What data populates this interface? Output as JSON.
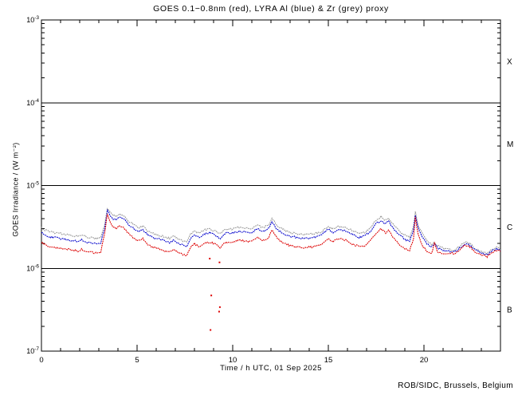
{
  "header": {
    "title": "GOES 0.1−0.8nm (red), LYRA Al (blue) & Zr (grey) proxy"
  },
  "footer": {
    "credit": "ROB/SIDC, Brussels, Belgium"
  },
  "colors": {
    "red": "#dd0000",
    "blue": "#0000cc",
    "grey": "#999999",
    "axis": "#000000",
    "background": "#ffffff"
  },
  "chart_data": {
    "type": "line",
    "title": "GOES 0.1−0.8nm (red), LYRA Al (blue) & Zr (grey) proxy",
    "xlabel": "Time / h UTC, 01 Sep 2025",
    "ylabel": "GOES Irradiance / (W m⁻²)",
    "x_range": [
      0,
      24
    ],
    "x_major_ticks": [
      0,
      5,
      10,
      15,
      20
    ],
    "x_minor_step": 1,
    "y_scale": "log",
    "y_major_exponents": [
      -3,
      -4,
      -5,
      -6,
      -7
    ],
    "y_top_exponent": -3,
    "y_bottom_exponent": -7,
    "grid": "off",
    "legend": "in-title",
    "unit_scale": 1e-06,
    "flare_class_lines": [
      0.0001,
      1e-05,
      1e-06
    ],
    "flare_class_labels": [
      {
        "label": "X",
        "flux": 0.000316
      },
      {
        "label": "M",
        "flux": 3.16e-05
      },
      {
        "label": "C",
        "flux": 3.16e-06
      },
      {
        "label": "B",
        "flux": 3.16e-07
      }
    ],
    "series": [
      {
        "name": "Zr (grey) proxy",
        "color_name": "grey",
        "color": "#999999",
        "points": [
          [
            0,
            3.08
          ],
          [
            0.3,
            2.82
          ],
          [
            0.7,
            2.7
          ],
          [
            1.0,
            2.64
          ],
          [
            1.3,
            2.58
          ],
          [
            1.6,
            2.49
          ],
          [
            1.9,
            2.43
          ],
          [
            2.1,
            2.55
          ],
          [
            2.35,
            2.4
          ],
          [
            2.6,
            2.34
          ],
          [
            2.9,
            2.28
          ],
          [
            3.1,
            2.37
          ],
          [
            3.3,
            3.3
          ],
          [
            3.45,
            5.35
          ],
          [
            3.6,
            4.7
          ],
          [
            3.75,
            4.35
          ],
          [
            3.9,
            4.3
          ],
          [
            4.1,
            4.55
          ],
          [
            4.3,
            4.35
          ],
          [
            4.55,
            3.75
          ],
          [
            4.8,
            3.4
          ],
          [
            5.05,
            3.1
          ],
          [
            5.3,
            3.25
          ],
          [
            5.55,
            2.85
          ],
          [
            5.85,
            2.65
          ],
          [
            6.15,
            2.5
          ],
          [
            6.45,
            2.4
          ],
          [
            6.7,
            2.3
          ],
          [
            6.95,
            2.45
          ],
          [
            7.15,
            2.25
          ],
          [
            7.4,
            2.15
          ],
          [
            7.6,
            2.1
          ],
          [
            7.8,
            2.6
          ],
          [
            8.0,
            2.85
          ],
          [
            8.25,
            2.65
          ],
          [
            8.5,
            2.9
          ],
          [
            8.8,
            3.0
          ],
          [
            9.1,
            2.8
          ],
          [
            9.35,
            2.6
          ],
          [
            9.6,
            2.95
          ],
          [
            10.0,
            3.0
          ],
          [
            10.4,
            3.15
          ],
          [
            10.7,
            3.05
          ],
          [
            11.0,
            3.05
          ],
          [
            11.3,
            3.3
          ],
          [
            11.6,
            3.1
          ],
          [
            11.9,
            3.4
          ],
          [
            12.05,
            4.0
          ],
          [
            12.3,
            3.35
          ],
          [
            12.6,
            2.95
          ],
          [
            13.0,
            2.7
          ],
          [
            13.4,
            2.6
          ],
          [
            13.8,
            2.58
          ],
          [
            14.2,
            2.62
          ],
          [
            14.6,
            2.75
          ],
          [
            15.0,
            3.2
          ],
          [
            15.25,
            3.0
          ],
          [
            15.55,
            3.2
          ],
          [
            15.9,
            3.1
          ],
          [
            16.3,
            2.85
          ],
          [
            16.6,
            2.65
          ],
          [
            16.9,
            2.7
          ],
          [
            17.2,
            3.1
          ],
          [
            17.5,
            3.8
          ],
          [
            17.75,
            4.2
          ],
          [
            18.0,
            3.8
          ],
          [
            18.15,
            4.05
          ],
          [
            18.4,
            3.35
          ],
          [
            18.7,
            2.85
          ],
          [
            19.0,
            2.5
          ],
          [
            19.25,
            2.35
          ],
          [
            19.45,
            3.2
          ],
          [
            19.55,
            4.8
          ],
          [
            19.7,
            3.3
          ],
          [
            19.9,
            2.65
          ],
          [
            20.15,
            2.19
          ],
          [
            20.4,
            1.95
          ],
          [
            20.55,
            2.05
          ],
          [
            20.7,
            1.9
          ],
          [
            21.0,
            1.73
          ],
          [
            21.3,
            1.69
          ],
          [
            21.6,
            1.65
          ],
          [
            21.9,
            1.87
          ],
          [
            22.15,
            2.06
          ],
          [
            22.4,
            1.99
          ],
          [
            22.7,
            1.72
          ],
          [
            23.0,
            1.6
          ],
          [
            23.3,
            1.52
          ],
          [
            23.6,
            1.71
          ],
          [
            23.8,
            1.79
          ],
          [
            24.0,
            1.68
          ]
        ]
      },
      {
        "name": "LYRA Al (blue) proxy",
        "color_name": "blue",
        "color": "#0000cc",
        "points": [
          [
            0,
            2.67
          ],
          [
            0.3,
            2.44
          ],
          [
            0.7,
            2.34
          ],
          [
            1.0,
            2.29
          ],
          [
            1.3,
            2.24
          ],
          [
            1.6,
            2.16
          ],
          [
            1.9,
            2.11
          ],
          [
            2.1,
            2.21
          ],
          [
            2.35,
            2.08
          ],
          [
            2.6,
            2.03
          ],
          [
            2.9,
            1.98
          ],
          [
            3.1,
            2.05
          ],
          [
            3.3,
            3.0
          ],
          [
            3.45,
            5.0
          ],
          [
            3.6,
            4.3
          ],
          [
            3.75,
            3.95
          ],
          [
            3.9,
            3.9
          ],
          [
            4.1,
            4.15
          ],
          [
            4.3,
            3.95
          ],
          [
            4.55,
            3.4
          ],
          [
            4.8,
            3.05
          ],
          [
            5.05,
            2.8
          ],
          [
            5.3,
            2.95
          ],
          [
            5.55,
            2.55
          ],
          [
            5.85,
            2.35
          ],
          [
            6.15,
            2.25
          ],
          [
            6.45,
            2.15
          ],
          [
            6.7,
            2.05
          ],
          [
            6.95,
            2.2
          ],
          [
            7.15,
            2.0
          ],
          [
            7.4,
            1.9
          ],
          [
            7.6,
            1.86
          ],
          [
            7.8,
            2.3
          ],
          [
            8.0,
            2.55
          ],
          [
            8.25,
            2.35
          ],
          [
            8.5,
            2.6
          ],
          [
            8.8,
            2.7
          ],
          [
            9.1,
            2.5
          ],
          [
            9.35,
            2.3
          ],
          [
            9.6,
            2.65
          ],
          [
            10.0,
            2.7
          ],
          [
            10.4,
            2.8
          ],
          [
            10.7,
            2.72
          ],
          [
            11.0,
            2.75
          ],
          [
            11.3,
            3.0
          ],
          [
            11.6,
            2.8
          ],
          [
            11.9,
            3.1
          ],
          [
            12.05,
            3.7
          ],
          [
            12.3,
            3.0
          ],
          [
            12.6,
            2.65
          ],
          [
            13.0,
            2.45
          ],
          [
            13.4,
            2.35
          ],
          [
            13.8,
            2.3
          ],
          [
            14.2,
            2.36
          ],
          [
            14.6,
            2.5
          ],
          [
            15.0,
            2.95
          ],
          [
            15.25,
            2.7
          ],
          [
            15.55,
            2.95
          ],
          [
            15.9,
            2.85
          ],
          [
            16.3,
            2.55
          ],
          [
            16.6,
            2.35
          ],
          [
            16.9,
            2.45
          ],
          [
            17.2,
            2.8
          ],
          [
            17.5,
            3.45
          ],
          [
            17.75,
            3.8
          ],
          [
            18.0,
            3.45
          ],
          [
            18.15,
            3.7
          ],
          [
            18.4,
            3.0
          ],
          [
            18.7,
            2.55
          ],
          [
            19.0,
            2.25
          ],
          [
            19.25,
            2.1
          ],
          [
            19.45,
            2.9
          ],
          [
            19.55,
            4.5
          ],
          [
            19.7,
            3.0
          ],
          [
            19.9,
            2.4
          ],
          [
            20.15,
            1.98
          ],
          [
            20.4,
            1.79
          ],
          [
            20.55,
            2.0
          ],
          [
            20.7,
            1.77
          ],
          [
            21.0,
            1.64
          ],
          [
            21.3,
            1.62
          ],
          [
            21.6,
            1.58
          ],
          [
            21.9,
            1.78
          ],
          [
            22.15,
            1.98
          ],
          [
            22.4,
            1.9
          ],
          [
            22.7,
            1.64
          ],
          [
            23.0,
            1.53
          ],
          [
            23.3,
            1.45
          ],
          [
            23.6,
            1.64
          ],
          [
            23.8,
            1.72
          ],
          [
            24.0,
            1.63
          ]
        ]
      },
      {
        "name": "GOES 0.1−0.8nm (red)",
        "color_name": "red",
        "color": "#dd0000",
        "points": [
          [
            0,
            2.05
          ],
          [
            0.3,
            1.88
          ],
          [
            0.7,
            1.8
          ],
          [
            1.0,
            1.76
          ],
          [
            1.3,
            1.72
          ],
          [
            1.6,
            1.66
          ],
          [
            1.9,
            1.62
          ],
          [
            2.1,
            1.7
          ],
          [
            2.35,
            1.6
          ],
          [
            2.6,
            1.56
          ],
          [
            2.9,
            1.52
          ],
          [
            3.1,
            1.58
          ],
          [
            3.3,
            2.6
          ],
          [
            3.45,
            4.6
          ],
          [
            3.6,
            3.6
          ],
          [
            3.75,
            3.15
          ],
          [
            3.9,
            3.05
          ],
          [
            4.1,
            3.3
          ],
          [
            4.3,
            3.1
          ],
          [
            4.55,
            2.65
          ],
          [
            4.8,
            2.35
          ],
          [
            5.05,
            2.15
          ],
          [
            5.3,
            2.3
          ],
          [
            5.55,
            1.95
          ],
          [
            5.85,
            1.8
          ],
          [
            6.15,
            1.7
          ],
          [
            6.45,
            1.63
          ],
          [
            6.7,
            1.58
          ],
          [
            6.95,
            1.7
          ],
          [
            7.15,
            1.55
          ],
          [
            7.4,
            1.47
          ],
          [
            7.6,
            1.43
          ],
          [
            7.8,
            1.8
          ],
          [
            8.0,
            1.98
          ],
          [
            8.25,
            1.82
          ],
          [
            8.5,
            2.02
          ],
          [
            8.8,
            2.08
          ],
          [
            9.1,
            1.95
          ],
          [
            9.35,
            1.78
          ],
          [
            9.6,
            2.05
          ],
          [
            10.0,
            2.1
          ],
          [
            10.4,
            2.18
          ],
          [
            10.7,
            2.1
          ],
          [
            11.0,
            2.12
          ],
          [
            11.3,
            2.32
          ],
          [
            11.6,
            2.18
          ],
          [
            11.9,
            2.4
          ],
          [
            12.05,
            2.95
          ],
          [
            12.3,
            2.35
          ],
          [
            12.6,
            2.05
          ],
          [
            13.0,
            1.88
          ],
          [
            13.4,
            1.8
          ],
          [
            13.8,
            1.78
          ],
          [
            14.2,
            1.82
          ],
          [
            14.6,
            1.92
          ],
          [
            15.0,
            2.3
          ],
          [
            15.25,
            2.1
          ],
          [
            15.55,
            2.3
          ],
          [
            15.9,
            2.2
          ],
          [
            16.3,
            1.95
          ],
          [
            16.6,
            1.82
          ],
          [
            16.9,
            1.88
          ],
          [
            17.2,
            2.15
          ],
          [
            17.5,
            2.7
          ],
          [
            17.75,
            3.0
          ],
          [
            18.0,
            2.7
          ],
          [
            18.15,
            2.9
          ],
          [
            18.4,
            2.35
          ],
          [
            18.7,
            1.98
          ],
          [
            19.0,
            1.72
          ],
          [
            19.25,
            1.62
          ],
          [
            19.45,
            2.3
          ],
          [
            19.55,
            4.1
          ],
          [
            19.7,
            2.5
          ],
          [
            19.9,
            1.9
          ],
          [
            20.15,
            1.62
          ],
          [
            20.4,
            1.52
          ],
          [
            20.55,
            1.98
          ],
          [
            20.7,
            1.58
          ],
          [
            21.0,
            1.52
          ],
          [
            21.3,
            1.54
          ],
          [
            21.6,
            1.5
          ],
          [
            21.9,
            1.7
          ],
          [
            22.15,
            1.92
          ],
          [
            22.4,
            1.82
          ],
          [
            22.7,
            1.56
          ],
          [
            23.0,
            1.46
          ],
          [
            23.3,
            1.38
          ],
          [
            23.6,
            1.58
          ],
          [
            23.8,
            1.66
          ],
          [
            24.0,
            1.58
          ]
        ]
      }
    ],
    "dropouts": {
      "series": "red",
      "color": "#dd0000",
      "points": [
        [
          8.8,
          1.31
        ],
        [
          9.31,
          1.18
        ],
        [
          8.88,
          0.47
        ],
        [
          9.33,
          0.34
        ],
        [
          9.29,
          0.3
        ],
        [
          8.84,
          0.18
        ]
      ]
    }
  }
}
